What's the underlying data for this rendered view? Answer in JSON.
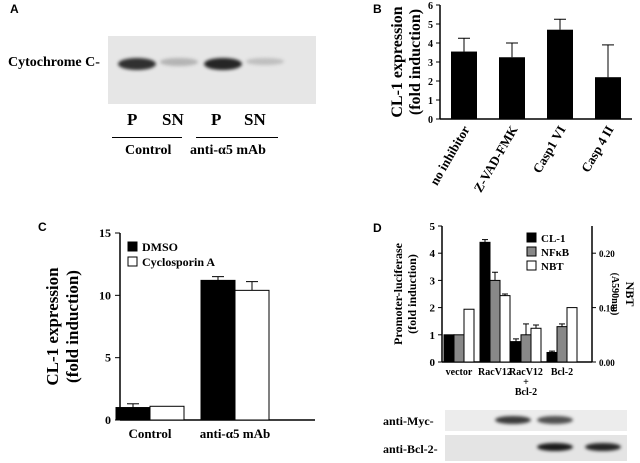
{
  "panels": {
    "A": {
      "label": "A",
      "band_label": "Cytochrome C-",
      "lanes": [
        "P",
        "SN",
        "P",
        "SN"
      ],
      "groups": [
        "Control",
        "anti-α5 mAb"
      ],
      "band_intensity": [
        0.85,
        0.25,
        0.9,
        0.2
      ]
    },
    "B": {
      "label": "B"
    },
    "C": {
      "label": "C"
    },
    "D": {
      "label": "D",
      "blot_rows": [
        {
          "label": "anti-Myc-",
          "intensity": [
            0,
            0.8,
            0.7,
            0
          ]
        },
        {
          "label": "anti-Bcl-2-",
          "intensity": [
            0,
            0,
            0.95,
            0.9
          ]
        }
      ]
    }
  },
  "chart_data": [
    {
      "panel": "B",
      "type": "bar",
      "categories": [
        "no inhibitor",
        "Z-VAD-FMK",
        "Casp1 VI",
        "Casp 4 II"
      ],
      "values": [
        3.55,
        3.25,
        4.7,
        2.2
      ],
      "errors": [
        0.7,
        0.75,
        0.55,
        1.7
      ],
      "ylabel": "CL-1 expression",
      "ylabel2": "(fold induction)",
      "ylim": [
        0,
        6
      ],
      "yticks": [
        "0",
        "1",
        "2",
        "3",
        "4",
        "5",
        "6"
      ],
      "colors": {
        "bar": "#000000"
      }
    },
    {
      "panel": "C",
      "type": "bar",
      "categories": [
        "Control",
        "anti-α5 mAb"
      ],
      "series": [
        {
          "name": "DMSO",
          "values": [
            1.0,
            11.2
          ],
          "errors": [
            0.3,
            0.3
          ],
          "color": "#000000"
        },
        {
          "name": "Cyclosporin A",
          "values": [
            1.1,
            10.4
          ],
          "errors": [
            0.0,
            0.7
          ],
          "color": "#ffffff"
        }
      ],
      "ylabel": "CL-1 expression",
      "ylabel2": "(fold induction)",
      "ylim": [
        0,
        15
      ],
      "yticks": [
        "0",
        "5",
        "10",
        "15"
      ],
      "legend_position": "top-left"
    },
    {
      "panel": "D",
      "type": "bar",
      "categories": [
        "vector",
        "RacV12",
        "RacV12",
        "Bcl-2"
      ],
      "category_sublabels": [
        "",
        "",
        "+",
        ""
      ],
      "category_sublabels2": [
        "",
        "",
        "Bcl-2",
        ""
      ],
      "series": [
        {
          "name": "CL-1",
          "values": [
            1.0,
            4.4,
            0.75,
            0.35
          ],
          "errors": [
            0,
            0.1,
            0.1,
            0.05
          ],
          "color": "#000000"
        },
        {
          "name": "NFκB",
          "values": [
            1.0,
            3.0,
            1.0,
            1.3
          ],
          "errors": [
            0,
            0.3,
            0.4,
            0.1
          ],
          "color": "#888888"
        },
        {
          "name": "NBT",
          "values": [
            0.097,
            0.122,
            0.062,
            0.1
          ],
          "errors": [
            0,
            0.003,
            0.006,
            0
          ],
          "color": "#ffffff",
          "axis": "right"
        }
      ],
      "ylabel": "Promoter-luciferase",
      "ylabel2": "(fold induction)",
      "ylim": [
        0,
        5
      ],
      "yticks": [
        "0",
        "1",
        "2",
        "3",
        "4",
        "5"
      ],
      "y2label": "NBT",
      "y2label2": "(A590nm)",
      "y2lim": [
        0,
        0.25
      ],
      "y2ticks": [
        "0.00",
        "0.10",
        "0.20"
      ],
      "legend_position": "top-right"
    }
  ]
}
